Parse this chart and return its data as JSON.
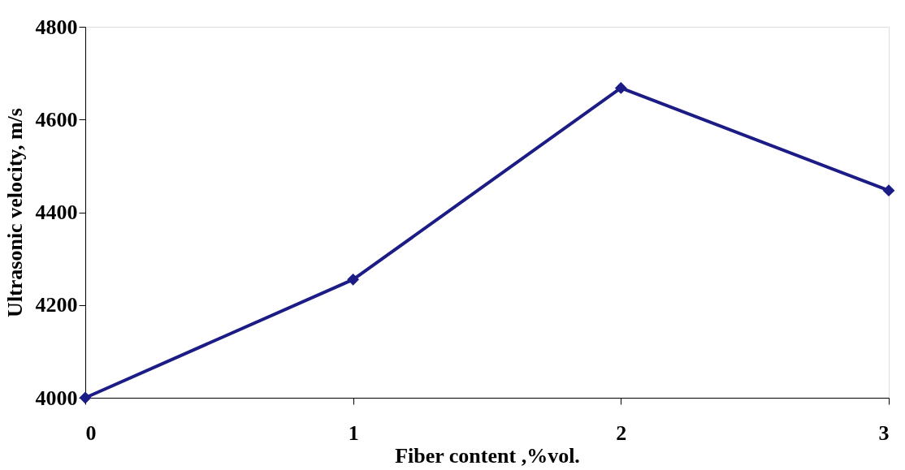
{
  "chart_data": {
    "type": "line",
    "xlabel": "Fiber content ,%vol.",
    "ylabel": "Ultrasonic velocity, m/s",
    "x": [
      0,
      1,
      2,
      3
    ],
    "series": [
      {
        "color": "#1c1c86",
        "values": [
          4000,
          4255,
          4668,
          4447
        ]
      }
    ],
    "xlim": [
      0,
      3
    ],
    "xticks": [
      0,
      1,
      2,
      3
    ],
    "ylim": [
      4000,
      4800
    ],
    "yticks": [
      4000,
      4200,
      4400,
      4600,
      4800
    ],
    "grid": false,
    "marker": "diamond",
    "line_style": "solid"
  }
}
